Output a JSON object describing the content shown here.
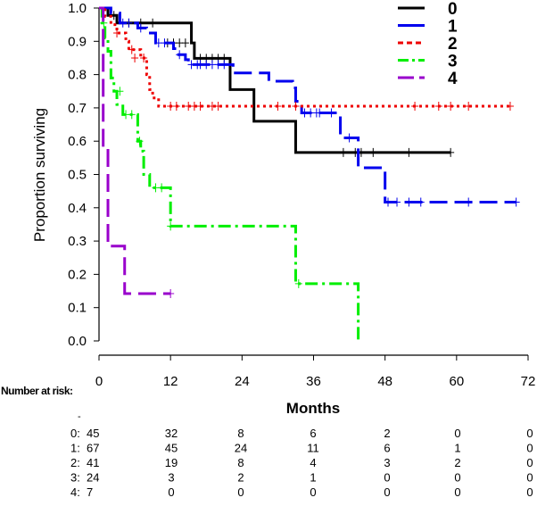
{
  "chart_data": {
    "type": "line",
    "title": "",
    "xlabel": "Months",
    "ylabel": "Proportion surviving",
    "xlim": [
      0,
      72
    ],
    "ylim": [
      0,
      1
    ],
    "xticks": [
      "0",
      "12",
      "24",
      "36",
      "48",
      "60",
      "72"
    ],
    "yticks": [
      "0.0",
      "0.1",
      "0.2",
      "0.3",
      "0.4",
      "0.5",
      "0.6",
      "0.7",
      "0.8",
      "0.9",
      "1.0"
    ],
    "grid": false,
    "legend_position": "top-right",
    "series": [
      {
        "name": "0",
        "color": "#000000",
        "dash": "solid",
        "steps": [
          [
            0,
            1.0
          ],
          [
            1.5,
            0.978
          ],
          [
            3,
            0.955
          ],
          [
            11,
            0.955
          ],
          [
            15.5,
            0.895
          ],
          [
            16,
            0.849
          ],
          [
            21.5,
            0.849
          ],
          [
            22,
            0.755
          ],
          [
            25.5,
            0.755
          ],
          [
            26,
            0.66
          ],
          [
            32.5,
            0.66
          ],
          [
            33,
            0.566
          ],
          [
            59,
            0.566
          ]
        ],
        "censored": [
          [
            2.5,
            0.978
          ],
          [
            5,
            0.955
          ],
          [
            7,
            0.955
          ],
          [
            9,
            0.955
          ],
          [
            11.5,
            0.895
          ],
          [
            12.5,
            0.895
          ],
          [
            13.5,
            0.895
          ],
          [
            14.5,
            0.895
          ],
          [
            17,
            0.849
          ],
          [
            18,
            0.849
          ],
          [
            19,
            0.849
          ],
          [
            20,
            0.849
          ],
          [
            21,
            0.849
          ],
          [
            41,
            0.566
          ],
          [
            43,
            0.566
          ],
          [
            44,
            0.566
          ],
          [
            46,
            0.566
          ],
          [
            52,
            0.566
          ],
          [
            59,
            0.566
          ]
        ]
      },
      {
        "name": "1",
        "color": "#0000ee",
        "dash": "long-dash",
        "steps": [
          [
            0,
            1.0
          ],
          [
            2,
            0.985
          ],
          [
            3.5,
            0.955
          ],
          [
            6.5,
            0.94
          ],
          [
            8,
            0.925
          ],
          [
            9.5,
            0.895
          ],
          [
            12.5,
            0.878
          ],
          [
            13,
            0.86
          ],
          [
            14.5,
            0.845
          ],
          [
            15,
            0.83
          ],
          [
            22,
            0.83
          ],
          [
            22.5,
            0.805
          ],
          [
            28,
            0.805
          ],
          [
            28.5,
            0.78
          ],
          [
            32,
            0.78
          ],
          [
            32.5,
            0.76
          ],
          [
            33,
            0.72
          ],
          [
            34,
            0.685
          ],
          [
            40,
            0.685
          ],
          [
            40.5,
            0.61
          ],
          [
            43,
            0.61
          ],
          [
            43.5,
            0.52
          ],
          [
            47,
            0.52
          ],
          [
            48,
            0.417
          ],
          [
            70,
            0.417
          ]
        ],
        "censored": [
          [
            4,
            0.955
          ],
          [
            5,
            0.955
          ],
          [
            7,
            0.94
          ],
          [
            10,
            0.895
          ],
          [
            11,
            0.895
          ],
          [
            13.5,
            0.86
          ],
          [
            15.5,
            0.83
          ],
          [
            16.5,
            0.83
          ],
          [
            17,
            0.83
          ],
          [
            18,
            0.83
          ],
          [
            19,
            0.83
          ],
          [
            20,
            0.83
          ],
          [
            21,
            0.83
          ],
          [
            34.5,
            0.685
          ],
          [
            35.5,
            0.685
          ],
          [
            36.5,
            0.685
          ],
          [
            37,
            0.685
          ],
          [
            39,
            0.685
          ],
          [
            42,
            0.61
          ],
          [
            48.5,
            0.417
          ],
          [
            50,
            0.417
          ],
          [
            52,
            0.417
          ],
          [
            54,
            0.417
          ],
          [
            62,
            0.417
          ],
          [
            70,
            0.417
          ]
        ]
      },
      {
        "name": "2",
        "color": "#ee0000",
        "dash": "dotted",
        "steps": [
          [
            0,
            1.0
          ],
          [
            1,
            0.975
          ],
          [
            2,
            0.95
          ],
          [
            3,
            0.925
          ],
          [
            4.5,
            0.9
          ],
          [
            5,
            0.875
          ],
          [
            7,
            0.85
          ],
          [
            8,
            0.8
          ],
          [
            8.5,
            0.755
          ],
          [
            9,
            0.73
          ],
          [
            10,
            0.705
          ],
          [
            69,
            0.705
          ]
        ],
        "censored": [
          [
            3,
            0.925
          ],
          [
            5.5,
            0.875
          ],
          [
            6,
            0.85
          ],
          [
            7.5,
            0.85
          ],
          [
            12,
            0.705
          ],
          [
            13,
            0.705
          ],
          [
            15,
            0.705
          ],
          [
            16,
            0.705
          ],
          [
            17,
            0.705
          ],
          [
            19,
            0.705
          ],
          [
            20,
            0.705
          ],
          [
            30,
            0.705
          ],
          [
            33,
            0.705
          ],
          [
            53,
            0.705
          ],
          [
            57,
            0.705
          ],
          [
            59,
            0.705
          ],
          [
            62,
            0.705
          ],
          [
            69,
            0.705
          ]
        ]
      },
      {
        "name": "3",
        "color": "#00ee00",
        "dash": "dash-dot",
        "steps": [
          [
            0,
            1.0
          ],
          [
            0.5,
            0.955
          ],
          [
            1,
            0.91
          ],
          [
            1.5,
            0.87
          ],
          [
            2,
            0.79
          ],
          [
            2.5,
            0.75
          ],
          [
            3,
            0.71
          ],
          [
            4,
            0.68
          ],
          [
            6,
            0.68
          ],
          [
            6.5,
            0.6
          ],
          [
            7,
            0.57
          ],
          [
            7.5,
            0.5
          ],
          [
            8.5,
            0.46
          ],
          [
            11.5,
            0.46
          ],
          [
            12,
            0.345
          ],
          [
            32.5,
            0.345
          ],
          [
            33,
            0.172
          ],
          [
            43,
            0.172
          ],
          [
            43.5,
            0.0
          ]
        ],
        "censored": [
          [
            0.8,
            0.955
          ],
          [
            3.5,
            0.75
          ],
          [
            4.5,
            0.68
          ],
          [
            5.5,
            0.68
          ],
          [
            6.8,
            0.6
          ],
          [
            9.5,
            0.46
          ],
          [
            10.5,
            0.46
          ],
          [
            12,
            0.345
          ],
          [
            33.5,
            0.172
          ]
        ]
      },
      {
        "name": "4",
        "color": "#9900cc",
        "dash": "long-dash",
        "steps": [
          [
            0,
            1.0
          ],
          [
            0.7,
            0.58
          ],
          [
            1.5,
            0.285
          ],
          [
            4,
            0.285
          ],
          [
            4.3,
            0.142
          ],
          [
            12,
            0.142
          ]
        ],
        "censored": [
          [
            12,
            0.142
          ]
        ]
      }
    ],
    "risk_table": {
      "title": "Number at risk:",
      "dash": "-",
      "rows": [
        {
          "label": "0:",
          "values": [
            "45",
            "32",
            "8",
            "6",
            "2",
            "0",
            "0"
          ]
        },
        {
          "label": "1:",
          "values": [
            "67",
            "45",
            "24",
            "11",
            "6",
            "1",
            "0"
          ]
        },
        {
          "label": "2:",
          "values": [
            "41",
            "19",
            "8",
            "4",
            "3",
            "2",
            "0"
          ]
        },
        {
          "label": "3:",
          "values": [
            "24",
            "3",
            "2",
            "1",
            "0",
            "0",
            "0"
          ]
        },
        {
          "label": "4:",
          "values": [
            "7",
            "0",
            "0",
            "0",
            "0",
            "0",
            "0"
          ]
        }
      ]
    }
  }
}
